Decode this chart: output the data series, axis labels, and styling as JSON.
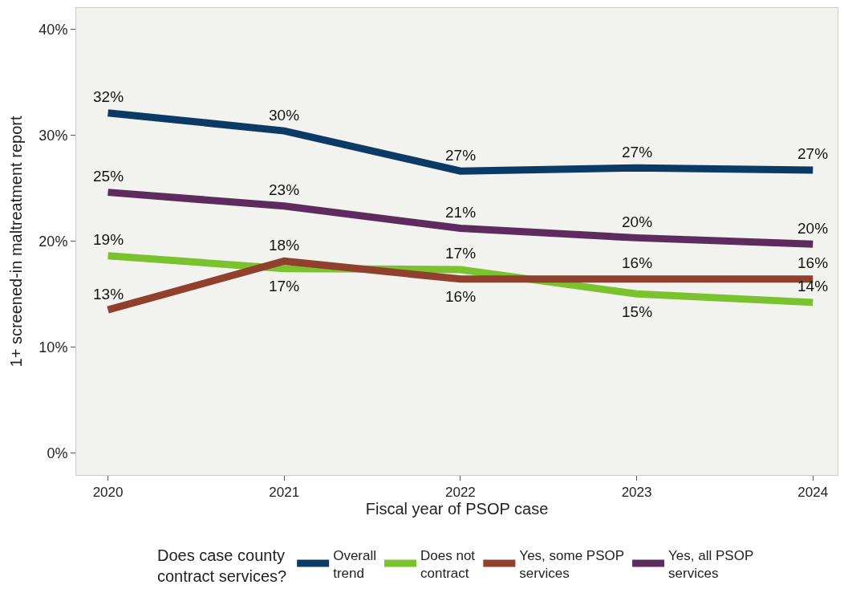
{
  "chart_data": {
    "type": "line",
    "xlabel": "Fiscal year of PSOP case",
    "ylabel": "1+ screened-in maltreatment report",
    "legend_title": "Does case county contract services?",
    "legend": "bottom",
    "grid": false,
    "marker": "none",
    "line_style": "solid",
    "categories": [
      "2020",
      "2021",
      "2022",
      "2023",
      "2024"
    ],
    "ylim": [
      -2.1,
      42
    ],
    "yticks": [
      {
        "value": 0,
        "label": "0%"
      },
      {
        "value": 10,
        "label": "10%"
      },
      {
        "value": 20,
        "label": "20%"
      },
      {
        "value": 30,
        "label": "30%"
      },
      {
        "value": 40,
        "label": "40%"
      }
    ],
    "series": [
      {
        "name": "Overall trend",
        "color": "#0c3a66",
        "values": [
          32.1,
          30.4,
          26.6,
          26.9,
          26.7
        ],
        "value_labels": [
          "32%",
          "30%",
          "27%",
          "27%",
          "27%"
        ]
      },
      {
        "name": "Does not contract",
        "color": "#7bc22f",
        "values": [
          18.6,
          17.4,
          17.3,
          15.0,
          14.2
        ],
        "value_labels": [
          "19%",
          "17%",
          "17%",
          "15%",
          "14%"
        ]
      },
      {
        "name": "Yes, some PSOP services",
        "color": "#92402e",
        "values": [
          13.5,
          18.1,
          16.4,
          16.4,
          16.4
        ],
        "value_labels": [
          "13%",
          "18%",
          "16%",
          "16%",
          "16%"
        ]
      },
      {
        "name": "Yes, all PSOP services",
        "color": "#5e2b5f",
        "values": [
          24.6,
          23.3,
          21.2,
          20.3,
          19.7
        ],
        "value_labels": [
          "25%",
          "23%",
          "21%",
          "20%",
          "20%"
        ]
      }
    ]
  }
}
